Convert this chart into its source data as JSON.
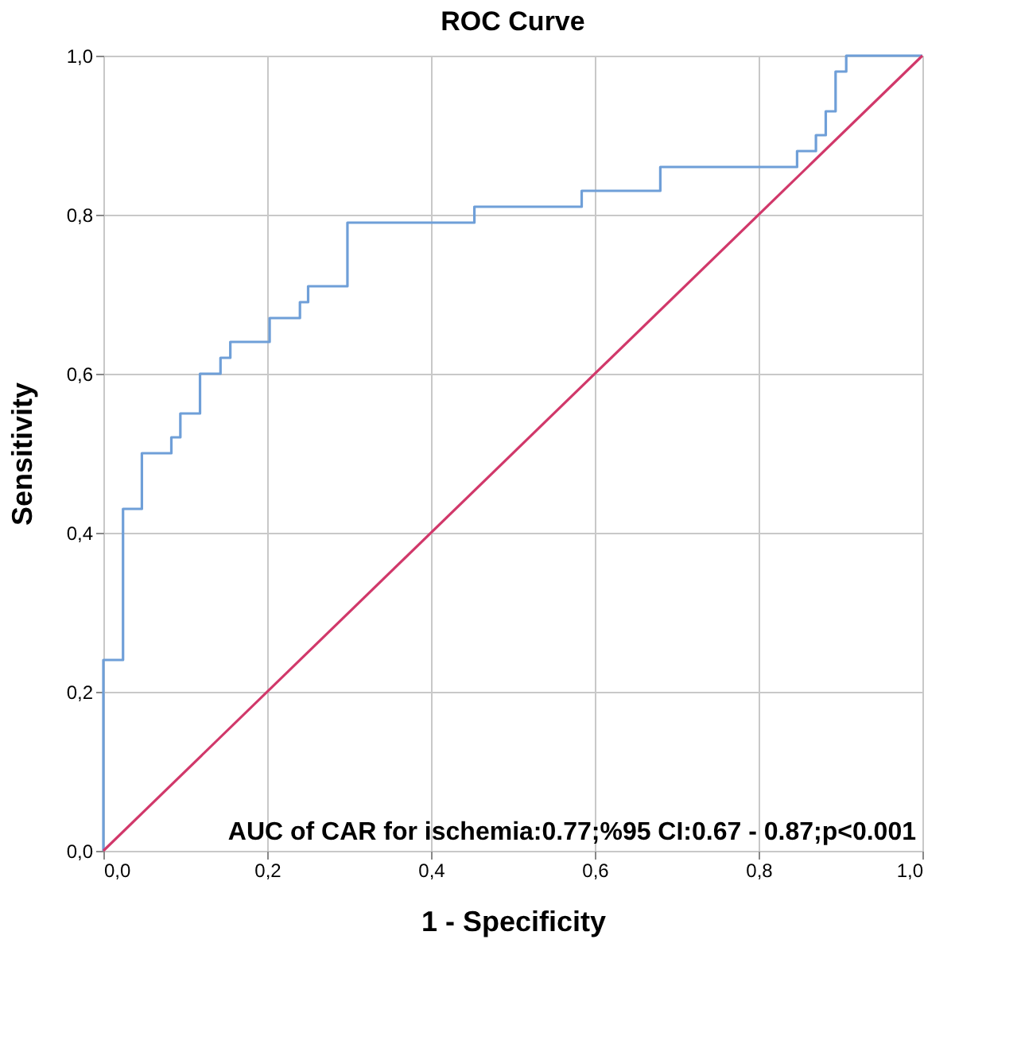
{
  "chart_data": {
    "type": "line",
    "title": "ROC Curve",
    "xlabel": "1 - Specificity",
    "ylabel": "Sensitivity",
    "xlim": [
      0,
      1
    ],
    "ylim": [
      0,
      1
    ],
    "xticks": [
      {
        "value": 0,
        "label": "0,0"
      },
      {
        "value": 0.2,
        "label": "0,2"
      },
      {
        "value": 0.4,
        "label": "0,4"
      },
      {
        "value": 0.6,
        "label": "0,6"
      },
      {
        "value": 0.8,
        "label": "0,8"
      },
      {
        "value": 1,
        "label": "1,0"
      }
    ],
    "yticks": [
      {
        "value": 0,
        "label": "0,0"
      },
      {
        "value": 0.2,
        "label": "0,2"
      },
      {
        "value": 0.4,
        "label": "0,4"
      },
      {
        "value": 0.6,
        "label": "0,6"
      },
      {
        "value": 0.8,
        "label": "0,8"
      },
      {
        "value": 1,
        "label": "1,0"
      }
    ],
    "grid": true,
    "marker": "none",
    "line_style": "solid",
    "annotations": [
      "AUC of CAR for ischemia:0.77;%95 CI:0.67 - 0.87;p<0.001"
    ],
    "series": [
      {
        "type": "step",
        "color": "#6f9fd8",
        "x": [
          0,
          0,
          0.024,
          0.047,
          0.083,
          0.094,
          0.118,
          0.143,
          0.155,
          0.203,
          0.24,
          0.25,
          0.298,
          0.453,
          0.584,
          0.68,
          0.847,
          0.87,
          0.882,
          0.894,
          0.907,
          1
        ],
        "values": [
          0,
          0.24,
          0.43,
          0.5,
          0.52,
          0.55,
          0.6,
          0.62,
          0.64,
          0.67,
          0.69,
          0.71,
          0.79,
          0.81,
          0.83,
          0.86,
          0.88,
          0.9,
          0.93,
          0.98,
          1,
          1
        ]
      },
      {
        "type": "line",
        "color": "#d1386a",
        "x": [
          0,
          1
        ],
        "values": [
          0,
          1
        ]
      }
    ]
  }
}
